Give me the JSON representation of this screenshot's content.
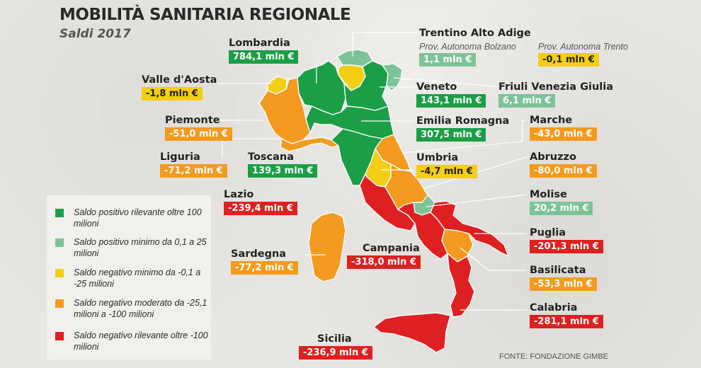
{
  "title": "MOBILITÀ SANITARIA REGIONALE",
  "subtitle": "Saldi 2017",
  "colors": {
    "strong_positive": "#1b9e45",
    "small_positive": "#7cc497",
    "small_negative": "#f4ce14",
    "moderate_negative": "#f39a1f",
    "strong_negative": "#df2020"
  },
  "regions": {
    "lombardia": {
      "name": "Lombardia",
      "value": "784,1 mln €",
      "category": "strong_positive"
    },
    "trentino": {
      "name": "Trentino Alto Adige"
    },
    "bolzano": {
      "name": "Prov. Autonoma Bolzano",
      "value": "1,1 mln €",
      "category": "small_positive"
    },
    "trento": {
      "name": "Prov. Autonoma Trento",
      "value": "-0,1 mln €",
      "category": "small_negative"
    },
    "valle": {
      "name": "Valle d'Aosta",
      "value": "-1,8 mln €",
      "category": "small_negative"
    },
    "veneto": {
      "name": "Veneto",
      "value": "143,1 mln €",
      "category": "strong_positive"
    },
    "friuli": {
      "name": "Friuli Venezia Giulia",
      "value": "6,1 mln €",
      "category": "small_positive"
    },
    "piemonte": {
      "name": "Piemonte",
      "value": "-51,0 mln €",
      "category": "moderate_negative"
    },
    "emilia": {
      "name": "Emilia Romagna",
      "value": "307,5 mln €",
      "category": "strong_positive"
    },
    "marche": {
      "name": "Marche",
      "value": "-43,0 mln €",
      "category": "moderate_negative"
    },
    "liguria": {
      "name": "Liguria",
      "value": "-71,2 mln €",
      "category": "moderate_negative"
    },
    "toscana": {
      "name": "Toscana",
      "value": "139,3 mln €",
      "category": "strong_positive"
    },
    "umbria": {
      "name": "Umbria",
      "value": "-4,7 mln €",
      "category": "small_negative"
    },
    "abruzzo": {
      "name": "Abruzzo",
      "value": "-80,0 mln €",
      "category": "moderate_negative"
    },
    "lazio": {
      "name": "Lazio",
      "value": "-239,4 mln €",
      "category": "strong_negative"
    },
    "molise": {
      "name": "Molise",
      "value": "20,2 mln €",
      "category": "small_positive"
    },
    "puglia": {
      "name": "Puglia",
      "value": "-201,3 mln €",
      "category": "strong_negative"
    },
    "sardegna": {
      "name": "Sardegna",
      "value": "-77,2 mln €",
      "category": "moderate_negative"
    },
    "campania": {
      "name": "Campania",
      "value": "-318,0 mln €",
      "category": "strong_negative"
    },
    "basilicata": {
      "name": "Basilicata",
      "value": "-53,3 mln €",
      "category": "moderate_negative"
    },
    "calabria": {
      "name": "Calabria",
      "value": "-281,1 mln €",
      "category": "strong_negative"
    },
    "sicilia": {
      "name": "Sicilia",
      "value": "-236,9 mln €",
      "category": "strong_negative"
    }
  },
  "legend": [
    {
      "category": "strong_positive",
      "text": "Saldo positivo rilevante oltre 100 milioni"
    },
    {
      "category": "small_positive",
      "text": "Saldo positivo minimo da 0,1 a 25 milioni"
    },
    {
      "category": "small_negative",
      "text": "Saldo negativo minimo da -0,1 a -25 milioni"
    },
    {
      "category": "moderate_negative",
      "text": "Saldo negativo moderato da -25,1 milioni a -100 milioni"
    },
    {
      "category": "strong_negative",
      "text": "Saldo negativo rilevante oltre -100 milioni"
    }
  ],
  "source": "FONTE: FONDAZIONE GIMBE"
}
